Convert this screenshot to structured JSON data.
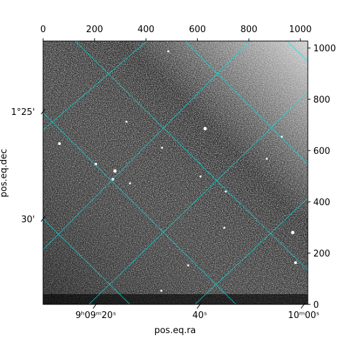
{
  "chart_data": {
    "type": "image",
    "xlabel": "pos.eq.ra",
    "ylabel": "pos.eq.dec",
    "xlim": [
      0,
      1029
    ],
    "ylim": [
      0,
      1027
    ],
    "xticks": [
      0,
      200,
      400,
      600,
      800,
      1000
    ],
    "yticks": [
      0,
      200,
      400,
      600,
      800,
      1000
    ],
    "ra_ticks": [
      "9ʰ09ᵐ20ˢ",
      "40ˢ",
      "10ᵐ00ˢ"
    ],
    "dec_ticks": [
      "1°25'",
      "30'"
    ],
    "colormap": "gray",
    "grid_color": "#00e5e5"
  }
}
